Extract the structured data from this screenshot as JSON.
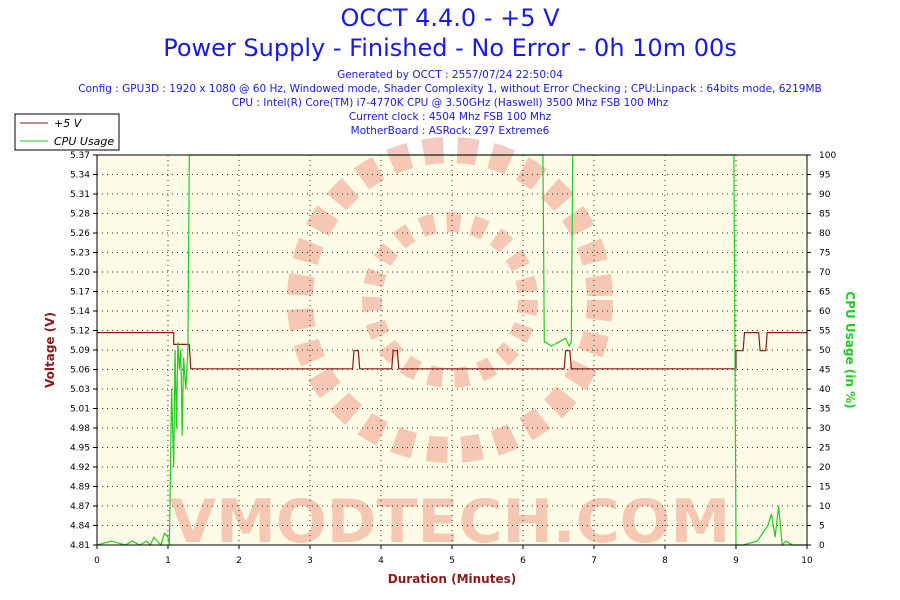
{
  "chart_data": {
    "type": "line",
    "title": "OCCT 4.4.0 - +5 V",
    "subtitle": "Power Supply - Finished - No Error - 0h 10m 00s",
    "info_lines": [
      "Generated by OCCT : 2557/07/24 22:50:04",
      "Config : GPU3D : 1920 x 1080 @ 60 Hz, Windowed mode, Shader Complexity 1, without Error Checking ; CPU:Linpack : 64bits mode, 6219MB",
      "CPU : Intel(R) Core(TM) i7-4770K CPU @ 3.50GHz (Haswell) 3500 Mhz FSB 100 Mhz",
      "Current clock : 4504 Mhz FSB 100 Mhz",
      "MotherBoard : ASRock: Z97 Extreme6"
    ],
    "watermark": "VMODTECH.COM",
    "xlabel": "Duration (Minutes)",
    "ylabel": "Voltage (V)",
    "y2label": "CPU Usage (in %)",
    "xlim": [
      0,
      10
    ],
    "ylim": [
      4.81,
      5.37
    ],
    "y2lim": [
      0,
      100
    ],
    "x_ticks": [
      "0",
      "1",
      "2",
      "3",
      "4",
      "5",
      "6",
      "7",
      "8",
      "9",
      "10"
    ],
    "y_ticks": [
      "4.81",
      "4.84",
      "4.87",
      "4.89",
      "4.92",
      "4.95",
      "4.98",
      "5.01",
      "5.03",
      "5.06",
      "5.09",
      "5.12",
      "5.14",
      "5.17",
      "5.20",
      "5.23",
      "5.26",
      "5.28",
      "5.31",
      "5.34",
      "5.37"
    ],
    "y2_ticks": [
      "0",
      "5",
      "10",
      "15",
      "20",
      "25",
      "30",
      "35",
      "40",
      "45",
      "50",
      "55",
      "60",
      "65",
      "70",
      "75",
      "80",
      "85",
      "90",
      "95",
      "100"
    ],
    "grid": true,
    "legend_position": "top-left",
    "series": [
      {
        "name": "+5 V",
        "color": "#8b1a1a",
        "axis": "left",
        "x": [
          0,
          1.08,
          1.08,
          1.3,
          1.32,
          3.6,
          3.62,
          3.68,
          3.7,
          4.15,
          4.17,
          4.23,
          4.25,
          6.58,
          6.6,
          6.66,
          6.68,
          8.97,
          9.0,
          9.0,
          9.1,
          9.12,
          9.32,
          9.34,
          9.42,
          9.44,
          10
        ],
        "y": [
          5.115,
          5.115,
          5.098,
          5.098,
          5.063,
          5.063,
          5.089,
          5.089,
          5.063,
          5.063,
          5.089,
          5.089,
          5.063,
          5.063,
          5.089,
          5.089,
          5.063,
          5.063,
          5.063,
          5.089,
          5.089,
          5.115,
          5.115,
          5.089,
          5.089,
          5.115,
          5.115
        ]
      },
      {
        "name": "CPU Usage",
        "color": "#22cc22",
        "axis": "right",
        "x": [
          0,
          0.2,
          0.4,
          0.5,
          0.6,
          0.7,
          0.75,
          0.8,
          0.85,
          0.9,
          0.95,
          1.0,
          1.02,
          1.05,
          1.08,
          1.1,
          1.12,
          1.14,
          1.16,
          1.18,
          1.2,
          1.22,
          1.25,
          1.28,
          1.3,
          6.28,
          6.3,
          6.32,
          6.4,
          6.5,
          6.6,
          6.65,
          6.68,
          6.7,
          8.97,
          9.0,
          9.1,
          9.3,
          9.45,
          9.5,
          9.55,
          9.6,
          9.65,
          9.7,
          9.8,
          10
        ],
        "y": [
          0,
          1,
          0,
          1,
          0,
          1,
          0,
          2,
          1,
          0,
          3,
          2,
          0,
          40,
          20,
          50,
          30,
          52,
          45,
          50,
          28,
          48,
          40,
          50,
          100,
          100,
          52,
          52,
          51,
          52,
          53,
          51,
          52,
          100,
          100,
          0,
          0,
          1,
          5,
          8,
          2,
          10,
          0,
          1,
          0,
          0
        ]
      }
    ]
  }
}
